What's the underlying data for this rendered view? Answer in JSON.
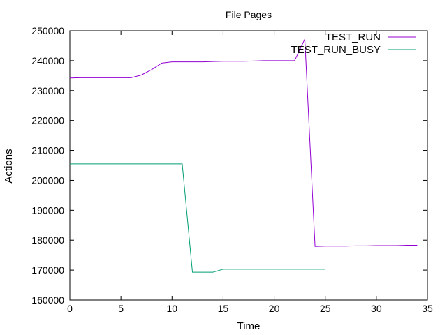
{
  "chart_data": {
    "type": "line",
    "title": "File Pages",
    "xlabel": "Time",
    "ylabel": "Actions",
    "xlim": [
      0,
      35
    ],
    "ylim": [
      160000,
      250000
    ],
    "xticks": [
      0,
      5,
      10,
      15,
      20,
      25,
      30,
      35
    ],
    "yticks": [
      160000,
      170000,
      180000,
      190000,
      200000,
      210000,
      220000,
      230000,
      240000,
      250000
    ],
    "grid": false,
    "legend_position": "top-right",
    "series": [
      {
        "name": "TEST_RUN",
        "color": "#9400d3",
        "x": [
          0,
          1,
          2,
          3,
          4,
          5,
          6,
          7,
          8,
          9,
          10,
          11,
          12,
          13,
          14,
          15,
          16,
          17,
          18,
          19,
          20,
          21,
          22,
          23,
          24,
          25,
          26,
          27,
          28,
          29,
          30,
          31,
          32,
          33,
          34
        ],
        "y": [
          234200,
          234300,
          234300,
          234300,
          234300,
          234300,
          234300,
          235200,
          237000,
          239200,
          239600,
          239600,
          239600,
          239600,
          239700,
          239800,
          239800,
          239800,
          239900,
          240000,
          240000,
          240000,
          240000,
          247200,
          177900,
          178000,
          178000,
          178000,
          178100,
          178100,
          178200,
          178200,
          178200,
          178300,
          178300
        ]
      },
      {
        "name": "TEST_RUN_BUSY",
        "color": "#009e73",
        "x": [
          0,
          1,
          2,
          3,
          4,
          5,
          6,
          7,
          8,
          9,
          10,
          11,
          12,
          13,
          14,
          15,
          16,
          17,
          18,
          19,
          20,
          21,
          22,
          23,
          24,
          25
        ],
        "y": [
          205500,
          205500,
          205500,
          205500,
          205500,
          205500,
          205500,
          205500,
          205500,
          205500,
          205500,
          205500,
          169300,
          169300,
          169300,
          170300,
          170300,
          170300,
          170300,
          170300,
          170300,
          170300,
          170300,
          170300,
          170300,
          170300
        ]
      }
    ]
  }
}
